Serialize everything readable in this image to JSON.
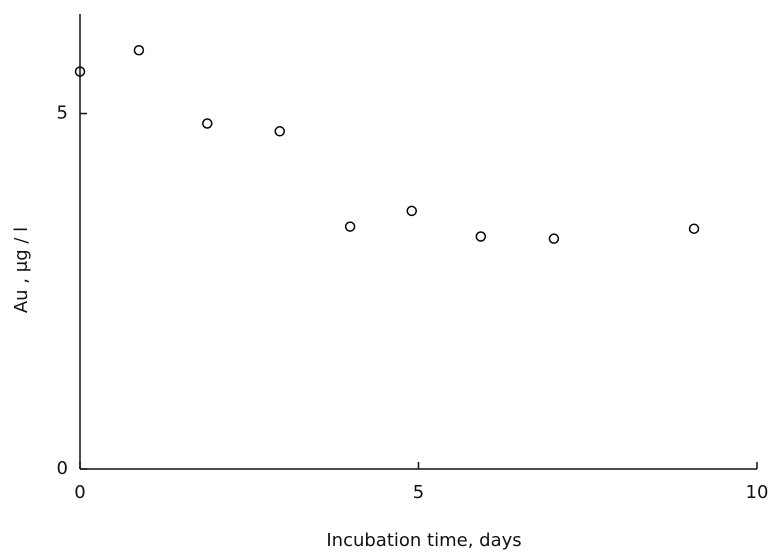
{
  "chart_data": {
    "type": "scatter",
    "x_label": "Incubation time, days",
    "y_label": "Au , μg / l",
    "series": [
      {
        "color": "#000000",
        "x": [
          0,
          0.87,
          1.88,
          2.95,
          3.99,
          4.9,
          5.92,
          7.0,
          9.07
        ],
        "values": [
          5.59,
          5.89,
          4.86,
          4.75,
          3.41,
          3.63,
          3.27,
          3.24,
          3.38
        ]
      }
    ],
    "xlim": [
      0,
      10
    ],
    "xticks": [
      0,
      5,
      10
    ],
    "ylim": [
      0,
      6.4
    ],
    "yticks": [
      0,
      5
    ]
  }
}
